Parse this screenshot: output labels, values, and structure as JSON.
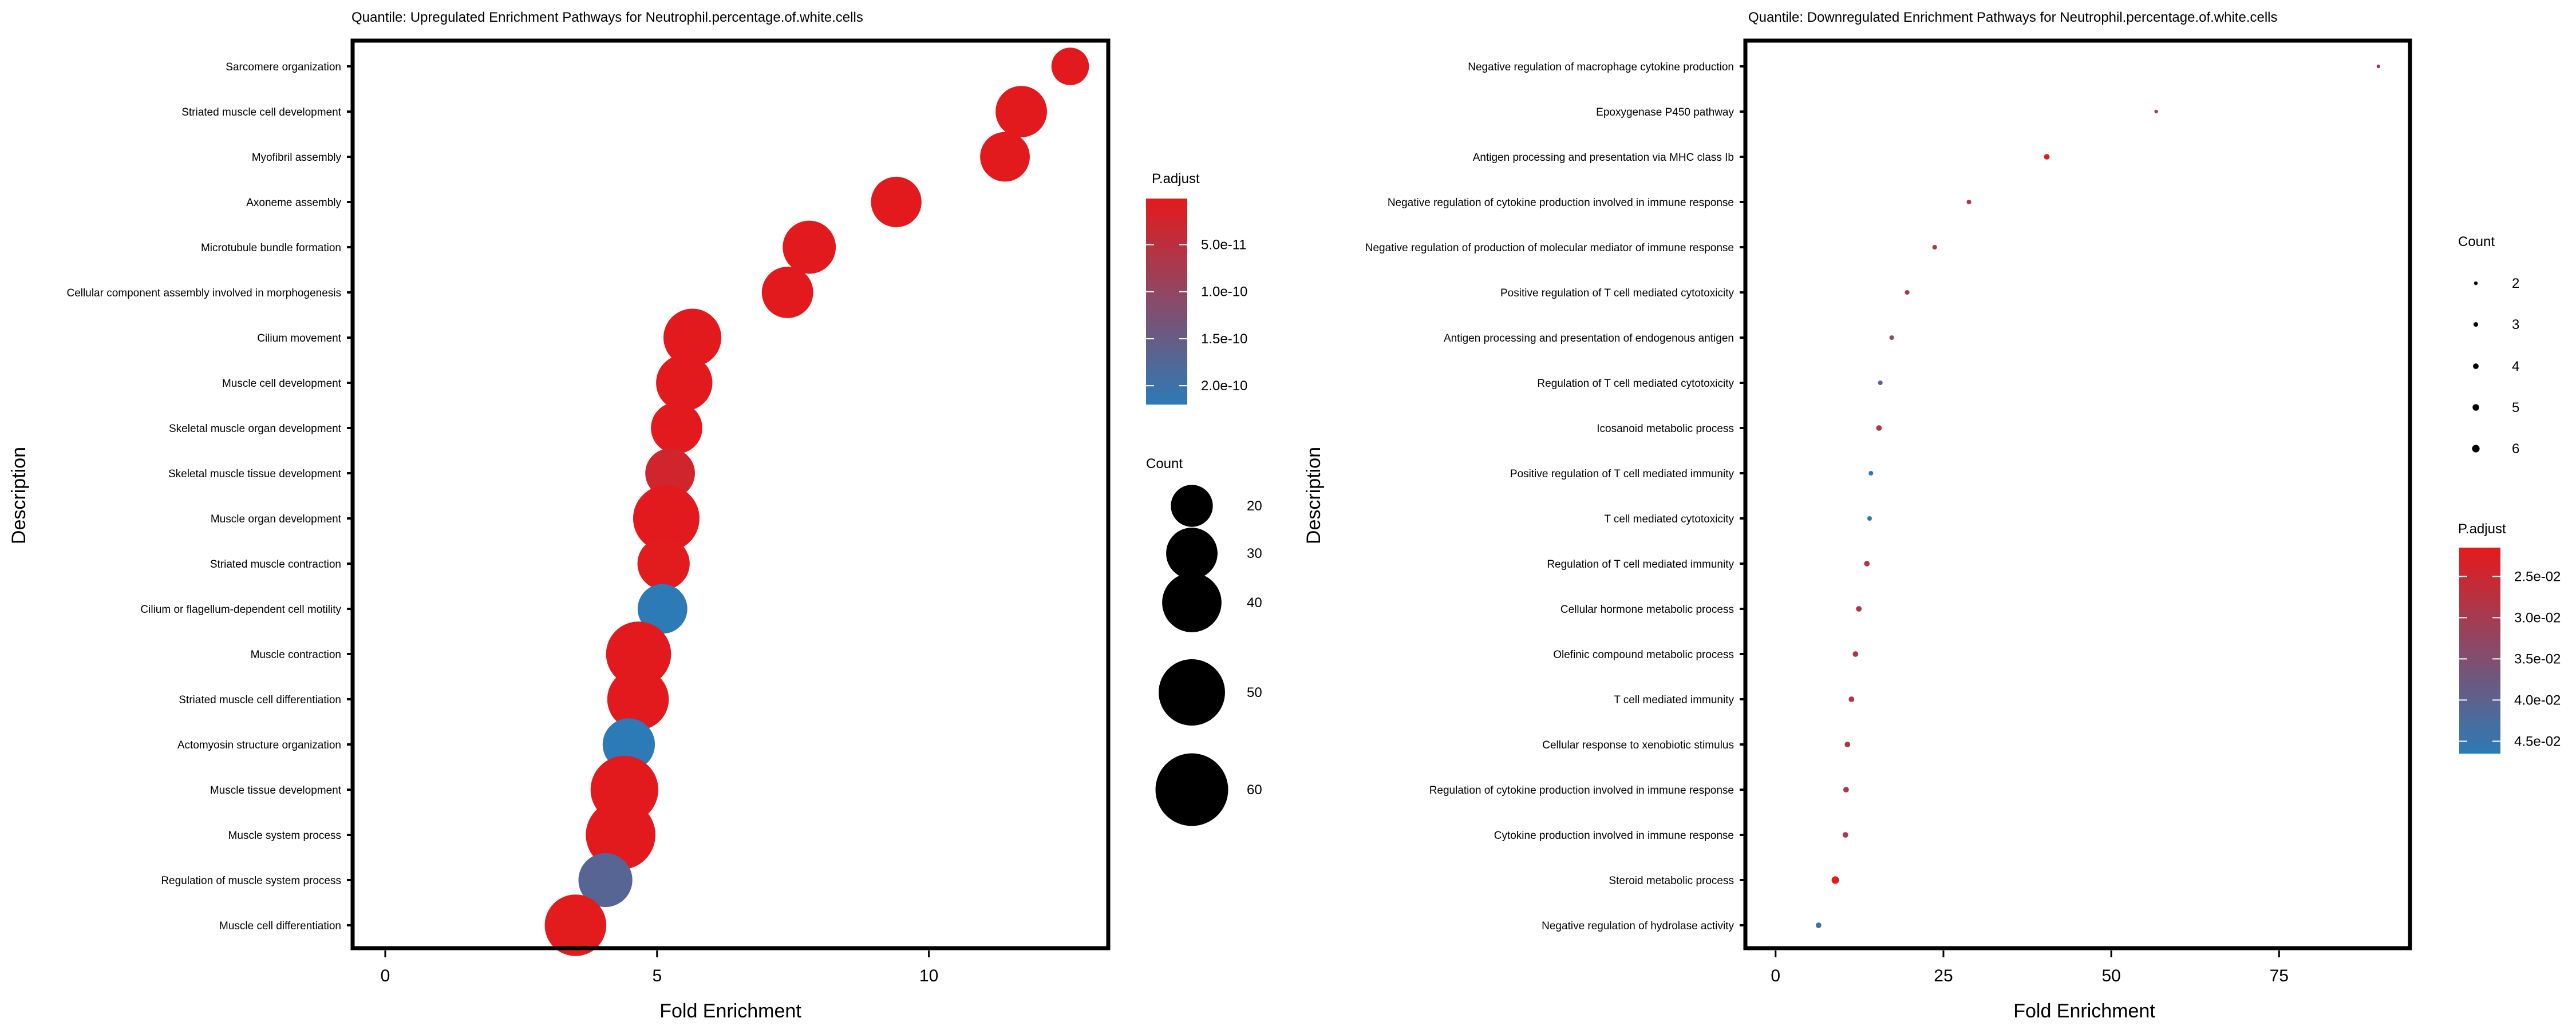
{
  "chart_data": [
    {
      "type": "scatter",
      "subtype": "bubble",
      "title": "Quantile: Upregulated Enrichment Pathways for Neutrophil.percentage.of.white.cells",
      "xlabel": "Fold Enrichment",
      "ylabel": "Description",
      "xlim": [
        -0.6,
        13.3
      ],
      "xticks": [
        0,
        5,
        10
      ],
      "grid": false,
      "legend_position": "right",
      "color_legend": {
        "title": "P.adjust",
        "ticks": [
          "5.0e-11",
          "1.0e-10",
          "1.5e-10",
          "2.0e-10"
        ],
        "tick_values": [
          5e-11,
          1e-10,
          1.5e-10,
          2e-10
        ],
        "range": [
          1e-12,
          2.2e-10
        ],
        "low_color": "#E41A1C",
        "high_color": "#2C7BB6"
      },
      "size_legend": {
        "title": "Count",
        "values": [
          20,
          30,
          40,
          50,
          60
        ]
      },
      "size_range": [
        15,
        65
      ],
      "categories": [
        "Sarcomere organization",
        "Striated muscle cell development",
        "Myofibril assembly",
        "Axoneme assembly",
        "Microtubule bundle formation",
        "Cellular component assembly involved in morphogenesis",
        "Cilium movement",
        "Muscle cell development",
        "Skeletal muscle organ development",
        "Skeletal muscle tissue development",
        "Muscle organ development",
        "Striated muscle contraction",
        "Cilium or flagellum-dependent cell motility",
        "Muscle contraction",
        "Striated muscle cell differentiation",
        "Actomyosin structure organization",
        "Muscle tissue development",
        "Muscle system process",
        "Regulation of muscle system process",
        "Muscle cell differentiation"
      ],
      "x": [
        12.6,
        11.7,
        11.4,
        9.4,
        7.8,
        7.4,
        5.65,
        5.5,
        5.36,
        5.24,
        5.17,
        5.12,
        5.1,
        4.66,
        4.65,
        4.48,
        4.4,
        4.33,
        4.05,
        3.5
      ],
      "count": [
        16,
        30,
        28,
        29,
        32,
        30,
        38,
        36,
        30,
        28,
        50,
        31,
        28,
        48,
        43,
        31,
        52,
        55,
        33,
        43
      ],
      "p_adjust": [
        2e-12,
        2e-12,
        2e-12,
        2e-12,
        2e-12,
        2e-12,
        2e-12,
        2e-12,
        2e-12,
        2.5e-11,
        2e-12,
        3e-12,
        2.2e-10,
        2e-12,
        2e-12,
        2.2e-10,
        2e-12,
        2e-12,
        1.7e-10,
        3e-12
      ]
    },
    {
      "type": "scatter",
      "subtype": "bubble",
      "title": "Quantile: Downregulated Enrichment Pathways for Neutrophil.percentage.of.white.cells",
      "xlabel": "Fold Enrichment",
      "ylabel": "Description",
      "xlim": [
        -4.5,
        94.5
      ],
      "xticks": [
        0,
        25,
        50,
        75
      ],
      "grid": false,
      "legend_position": "right",
      "size_legend": {
        "title": "Count",
        "values": [
          2,
          3,
          4,
          5,
          6
        ]
      },
      "size_range": [
        2,
        6
      ],
      "color_legend": {
        "title": "P.adjust",
        "ticks": [
          "2.5e-02",
          "3.0e-02",
          "3.5e-02",
          "4.0e-02",
          "4.5e-02"
        ],
        "tick_values": [
          0.025,
          0.03,
          0.035,
          0.04,
          0.045
        ],
        "range": [
          0.0215,
          0.0465
        ],
        "low_color": "#E41A1C",
        "high_color": "#2C7BB6"
      },
      "categories": [
        "Negative regulation of macrophage cytokine production",
        "Epoxygenase P450 pathway",
        "Antigen processing and presentation via MHC class Ib",
        "Negative regulation of cytokine production involved in immune response",
        "Negative regulation of production of molecular mediator of immune response",
        "Positive regulation of T cell mediated cytotoxicity",
        "Antigen processing and presentation of endogenous antigen",
        "Regulation of T cell mediated cytotoxicity",
        "Icosanoid metabolic process",
        "Positive regulation of T cell mediated immunity",
        "T cell mediated cytotoxicity",
        "Regulation of T cell mediated immunity",
        "Cellular hormone metabolic process",
        "Olefinic compound metabolic process",
        "T cell mediated immunity",
        "Cellular response to xenobiotic stimulus",
        "Regulation of cytokine production involved in immune response",
        "Cytokine production involved in immune response",
        "Steroid metabolic process",
        "Negative regulation of hydrolase activity"
      ],
      "x": [
        89.8,
        56.7,
        40.4,
        28.8,
        23.7,
        19.6,
        17.3,
        15.6,
        15.4,
        14.2,
        14.0,
        13.6,
        12.4,
        11.9,
        11.3,
        10.7,
        10.5,
        10.4,
        8.9,
        6.4
      ],
      "count": [
        2,
        2,
        4,
        3,
        3,
        3,
        3,
        3,
        4,
        3,
        3,
        4,
        4,
        4,
        4,
        4,
        4,
        4,
        6,
        4
      ],
      "p_adjust": [
        0.029,
        0.029,
        0.022,
        0.029,
        0.029,
        0.029,
        0.034,
        0.041,
        0.029,
        0.046,
        0.046,
        0.029,
        0.029,
        0.029,
        0.029,
        0.029,
        0.029,
        0.029,
        0.022,
        0.043
      ]
    }
  ]
}
